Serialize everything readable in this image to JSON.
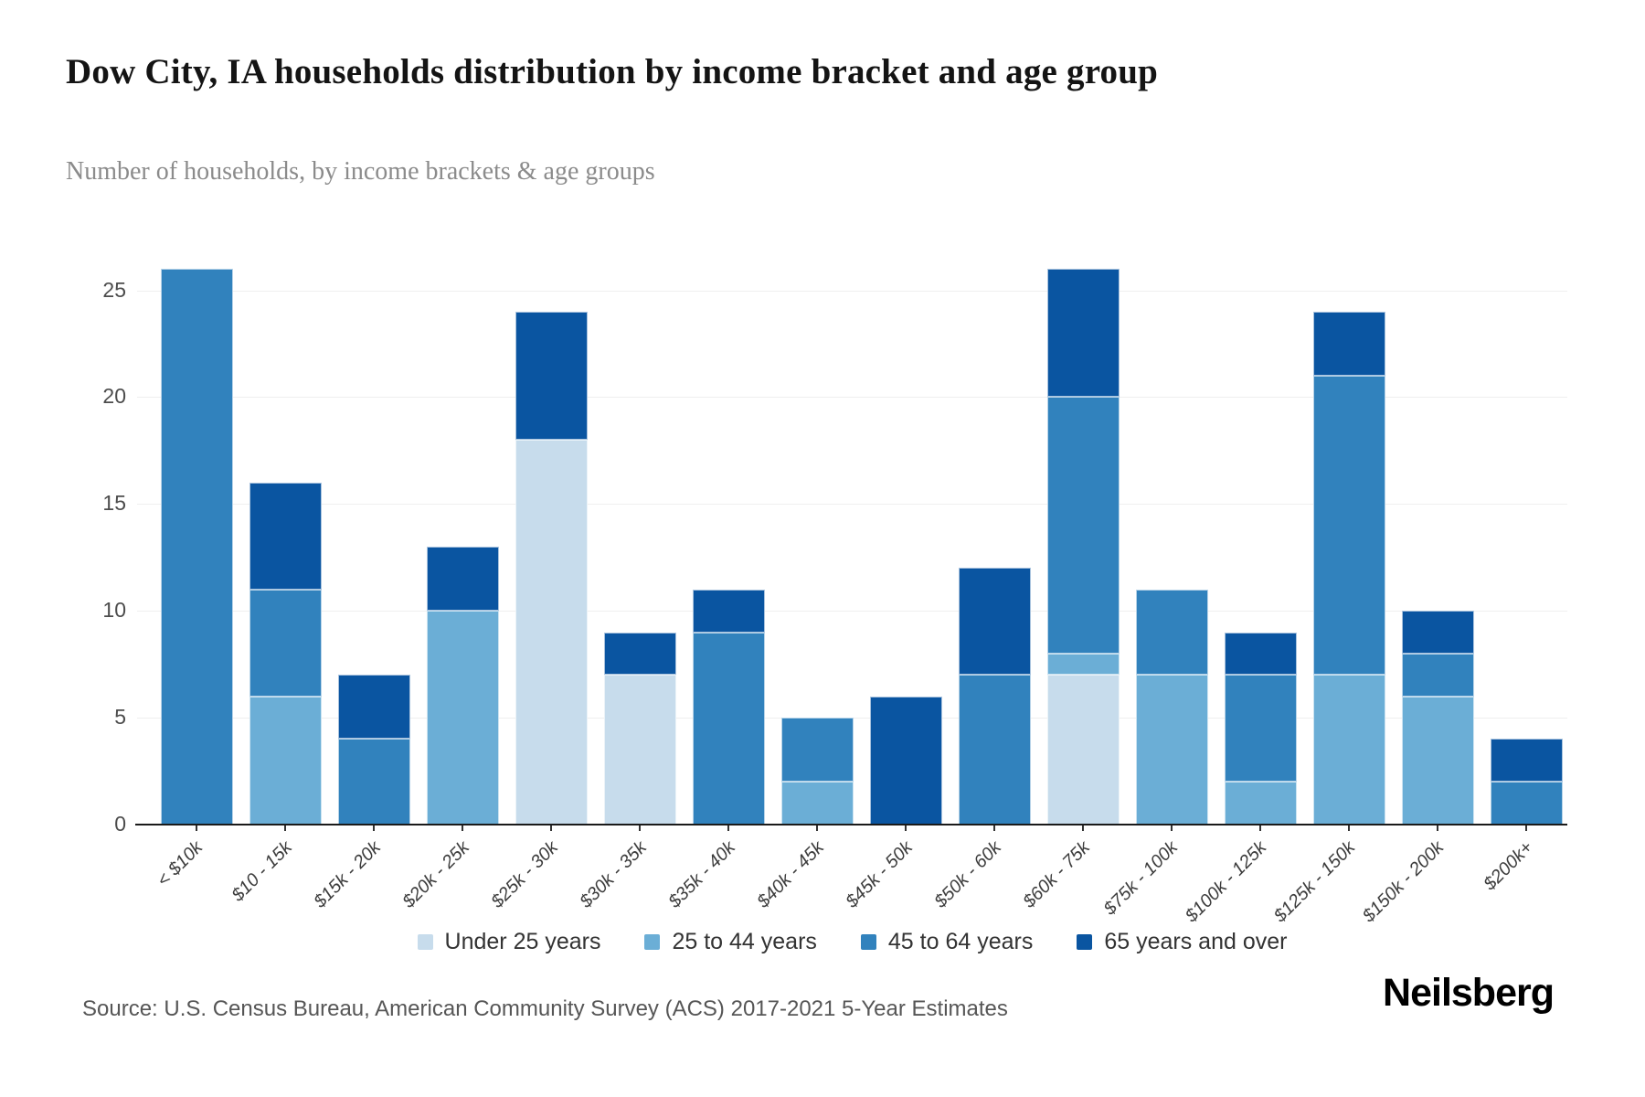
{
  "title": "Dow City, IA households distribution by income bracket and age group",
  "subtitle": "Number of households, by income brackets & age groups",
  "source": "Source: U.S. Census Bureau, American Community Survey (ACS) 2017-2021 5-Year Estimates",
  "logo": "Neilsberg",
  "colors": {
    "under_25": "#c7dcec",
    "age_25_44": "#6baed6",
    "age_45_64": "#3182bd",
    "age_65_plus": "#0a55a1",
    "grid": "#efefef",
    "axis": "#1a1a1a",
    "y_label": "#4c4c4c",
    "x_label": "#3d3d3d",
    "legend_text": "#333333",
    "subtitle_text": "#8b8b8b",
    "source_text": "#565656"
  },
  "chart_data": {
    "type": "bar",
    "stacked": true,
    "title": "Dow City, IA households distribution by income bracket and age group",
    "subtitle": "Number of households, by income brackets & age groups",
    "xlabel": "",
    "ylabel": "",
    "ylim": [
      0,
      27.5
    ],
    "yticks": [
      0,
      5,
      10,
      15,
      20,
      25
    ],
    "grid": true,
    "legend_position": "bottom",
    "categories": [
      "< $10k",
      "$10 - 15k",
      "$15k - 20k",
      "$20k - 25k",
      "$25k - 30k",
      "$30k - 35k",
      "$35k - 40k",
      "$40k - 45k",
      "$45k - 50k",
      "$50k - 60k",
      "$60k - 75k",
      "$75k - 100k",
      "$100k - 125k",
      "$125k - 150k",
      "$150k - 200k",
      "$200k+"
    ],
    "series": [
      {
        "name": "Under 25 years",
        "color": "#c7dcec",
        "values": [
          0,
          0,
          0,
          0,
          18,
          7,
          0,
          0,
          0,
          0,
          7,
          0,
          0,
          0,
          0,
          0
        ]
      },
      {
        "name": "25 to 44 years",
        "color": "#6baed6",
        "values": [
          0,
          6,
          0,
          10,
          0,
          0,
          0,
          2,
          0,
          0,
          1,
          7,
          2,
          7,
          6,
          0
        ]
      },
      {
        "name": "45 to 64 years",
        "color": "#3182bd",
        "values": [
          26,
          5,
          4,
          0,
          0,
          0,
          9,
          3,
          0,
          7,
          12,
          4,
          5,
          14,
          2,
          2
        ]
      },
      {
        "name": "65 years and over",
        "color": "#0a55a1",
        "values": [
          0,
          5,
          3,
          3,
          6,
          2,
          2,
          0,
          6,
          5,
          6,
          0,
          2,
          3,
          2,
          2
        ]
      }
    ],
    "totals": [
      26,
      16,
      7,
      13,
      24,
      9,
      11,
      5,
      6,
      12,
      26,
      11,
      9,
      24,
      10,
      4
    ]
  }
}
